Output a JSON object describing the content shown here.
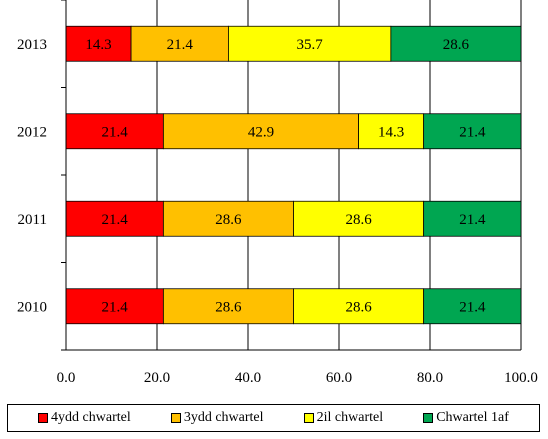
{
  "chart_data": {
    "type": "bar",
    "orientation": "horizontal",
    "stacked": true,
    "categories": [
      "2010",
      "2011",
      "2012",
      "2013"
    ],
    "series": [
      {
        "name": "4ydd chwartel",
        "color": "#ff0000",
        "values": [
          21.4,
          21.4,
          21.4,
          14.3
        ],
        "labels": [
          "21.4",
          "21.4",
          "21.4",
          "14.3"
        ]
      },
      {
        "name": "3ydd chwartel",
        "color": "#ffc000",
        "values": [
          28.6,
          28.6,
          42.9,
          21.4
        ],
        "labels": [
          "28.6",
          "28.6",
          "42.9",
          "21.4"
        ]
      },
      {
        "name": "2il chwartel",
        "color": "#ffff00",
        "values": [
          28.6,
          28.6,
          14.3,
          35.7
        ],
        "labels": [
          "28.6",
          "28.6",
          "14.3",
          "35.7"
        ]
      },
      {
        "name": "Chwartel 1af",
        "color": "#00a651",
        "values": [
          21.4,
          21.4,
          21.4,
          28.6
        ],
        "labels": [
          "21.4",
          "21.4",
          "21.4",
          "28.6"
        ]
      }
    ],
    "xlim": [
      0,
      100
    ],
    "xticks": [
      "0.0",
      "20.0",
      "40.0",
      "60.0",
      "80.0",
      "100.0"
    ],
    "xlabel": "",
    "ylabel": "",
    "title": "",
    "grid": "vertical",
    "legend_position": "bottom"
  }
}
